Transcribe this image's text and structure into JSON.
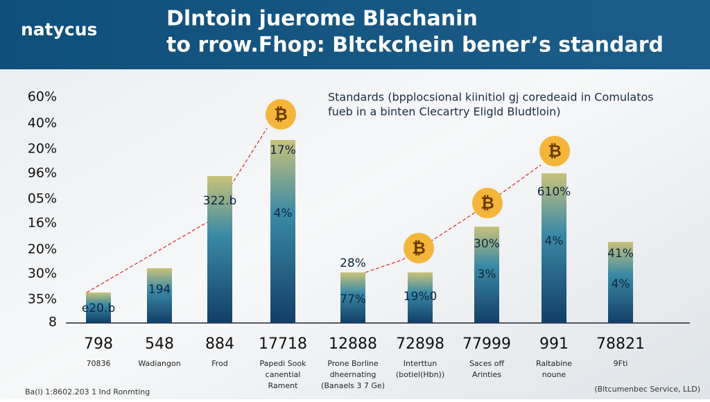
{
  "header": {
    "logo": "natycus",
    "title_lines": [
      "Dlntoin juerome Blachanin",
      "to rrow.Fhop: Bltckchein bener’s standard"
    ]
  },
  "chart": {
    "subtitle_lines": [
      "Standards (bpplocsional kiinitiol gj coredeaid in Comulatos",
      "fueb in a binten Clecartry Eligld Bludtloin)"
    ],
    "y_axis_labels": [
      "60%",
      "40%",
      "20%",
      "96%",
      "05%",
      "16%",
      "20%",
      "30%",
      "35%",
      "8"
    ],
    "bars": [
      {
        "number": "798",
        "label_lines": [
          "70836"
        ],
        "value_labels": [
          "e20.b"
        ]
      },
      {
        "number": "548",
        "label_lines": [
          "Wadiangon"
        ],
        "value_labels": [
          "194"
        ]
      },
      {
        "number": "884",
        "label_lines": [
          "Frod"
        ],
        "value_labels": [
          "322.b"
        ]
      },
      {
        "number": "17718",
        "label_lines": [
          "Papedi Sook",
          "canential",
          "Rament"
        ],
        "value_labels": [
          "17%",
          "4%"
        ]
      },
      {
        "number": "12888",
        "label_lines": [
          "Prone Borline",
          "dheernating",
          "(Banaels 3 7 Ge)"
        ],
        "value_labels": [
          "28%",
          "77%"
        ]
      },
      {
        "number": "72898",
        "label_lines": [
          "Interttun",
          "(botiel(Hbn))"
        ],
        "value_labels": [
          "19%0"
        ]
      },
      {
        "number": "77999",
        "label_lines": [
          "Saces off",
          "Arinties"
        ],
        "value_labels": [
          "30%",
          "3%"
        ]
      },
      {
        "number": "991",
        "label_lines": [
          "Raltabine",
          "noune"
        ],
        "value_labels": [
          "610%",
          "4%"
        ]
      },
      {
        "number": "78821",
        "label_lines": [
          "9Fti"
        ],
        "value_labels": [
          "41%",
          "4%"
        ]
      }
    ]
  },
  "footer": {
    "left": "Ba(l) 1:8602.203 1 Ind Ronmting",
    "right": "(Bltcumenbec Service, LLD)"
  }
}
